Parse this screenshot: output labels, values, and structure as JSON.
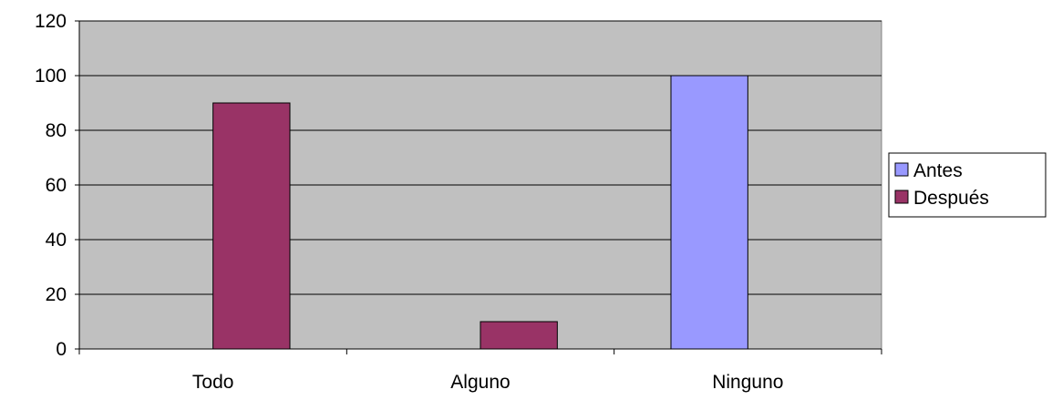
{
  "chart_data": {
    "type": "bar",
    "categories": [
      "Todo",
      "Alguno",
      "Ninguno"
    ],
    "series": [
      {
        "name": "Antes",
        "color": "#9999ff",
        "values": [
          0,
          0,
          100
        ]
      },
      {
        "name": "Después",
        "color": "#993366",
        "values": [
          90,
          10,
          0
        ]
      }
    ],
    "title": "",
    "xlabel": "",
    "ylabel": "",
    "ylim": [
      0,
      120
    ],
    "yticks": [
      0,
      20,
      40,
      60,
      80,
      100,
      120
    ],
    "grid": true,
    "legend": "right",
    "plot_background": "#c0c0c0"
  }
}
